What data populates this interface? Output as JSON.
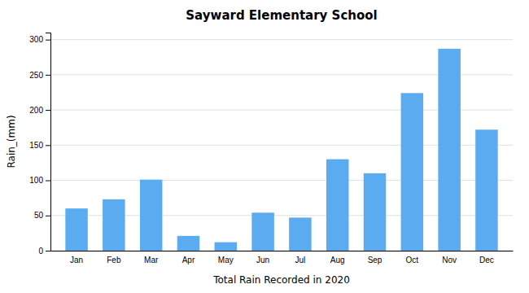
{
  "chart_data": {
    "type": "bar",
    "title": "Sayward Elementary School",
    "xlabel": "Total Rain Recorded in 2020",
    "ylabel": "Rain_(mm)",
    "categories": [
      "Jan",
      "Feb",
      "Mar",
      "Apr",
      "May",
      "Jun",
      "Jul",
      "Aug",
      "Sep",
      "Oct",
      "Nov",
      "Dec"
    ],
    "values": [
      60,
      73,
      101,
      21,
      12,
      54,
      47,
      130,
      110,
      224,
      287,
      172
    ],
    "color": "#5aabf0",
    "ylim": [
      0,
      310
    ],
    "yticks": [
      0,
      50,
      100,
      150,
      200,
      250,
      300
    ],
    "grid": true
  }
}
